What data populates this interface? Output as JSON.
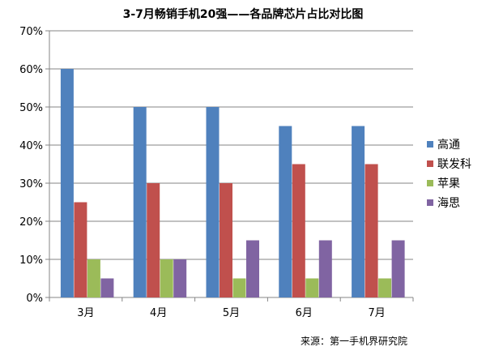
{
  "chart_data": {
    "type": "bar",
    "title": "3-7月畅销手机20强——各品牌芯片占比对比图",
    "xlabel": "",
    "ylabel": "",
    "categories": [
      "3月",
      "4月",
      "5月",
      "6月",
      "7月"
    ],
    "series": [
      {
        "name": "高通",
        "color": "#4f81bd",
        "values": [
          60,
          50,
          50,
          45,
          45
        ]
      },
      {
        "name": "联发科",
        "color": "#c0504d",
        "values": [
          25,
          30,
          30,
          35,
          35
        ]
      },
      {
        "name": "苹果",
        "color": "#9bbb59",
        "values": [
          10,
          10,
          5,
          5,
          5
        ]
      },
      {
        "name": "海思",
        "color": "#8064a2",
        "values": [
          5,
          10,
          15,
          15,
          15
        ]
      }
    ],
    "ylim": [
      0,
      70
    ],
    "yticks": [
      "0%",
      "10%",
      "20%",
      "30%",
      "40%",
      "50%",
      "60%",
      "70%"
    ],
    "grid": true,
    "legend_position": "right",
    "source": "来源：第一手机界研究院"
  }
}
